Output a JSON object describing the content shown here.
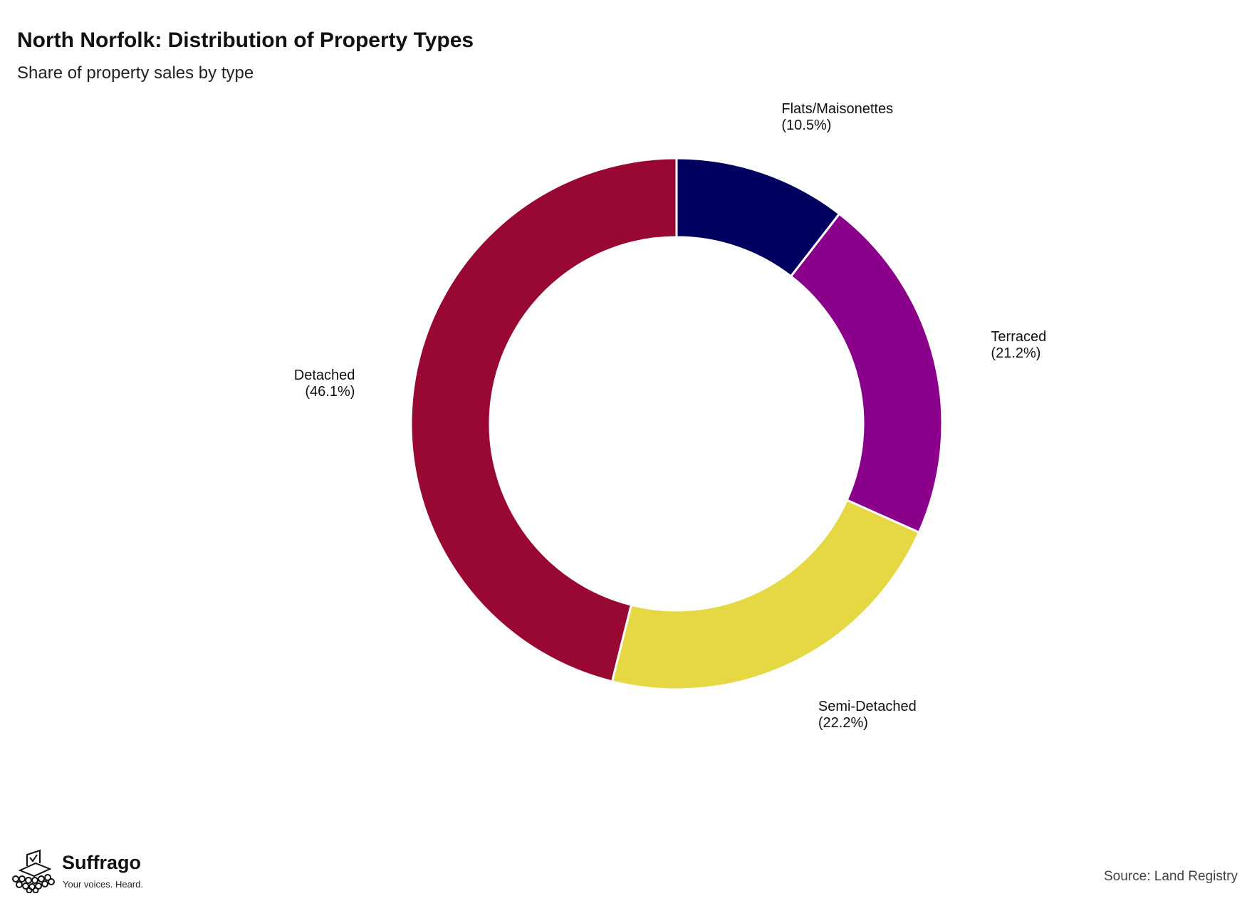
{
  "chart_data": {
    "type": "pie",
    "title": "North Norfolk: Distribution of Property Types",
    "subtitle": "Share of property sales by type",
    "slices": [
      {
        "label": "Flats/Maisonettes",
        "value": 10.5,
        "display": "(10.5%)",
        "color": "#000060"
      },
      {
        "label": "Terraced",
        "value": 21.2,
        "display": "(21.2%)",
        "color": "#8B008B"
      },
      {
        "label": "Semi-Detached",
        "value": 22.2,
        "display": "(22.2%)",
        "color": "#E5D842"
      },
      {
        "label": "Detached",
        "value": 46.1,
        "display": "(46.1%)",
        "color": "#990833"
      }
    ],
    "start_angle": "12 o'clock",
    "direction": "clockwise",
    "style": "donut",
    "legend": "none"
  },
  "branding": {
    "name": "Suffrago",
    "tagline": "Your voices. Heard."
  },
  "source": "Source: Land Registry"
}
